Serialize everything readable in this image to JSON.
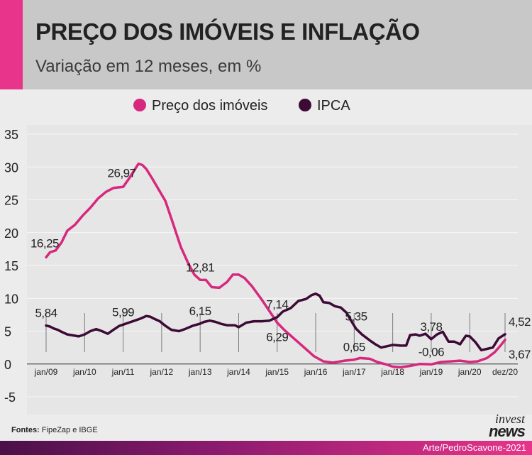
{
  "header": {
    "title": "PREÇO DOS IMÓVEIS E INFLAÇÃO",
    "subtitle": "Variação em 12 meses, em %"
  },
  "footer": {
    "sources_label": "Fontes:",
    "sources_text": " FipeZap e IBGE",
    "credit": "Arte/PedroScavone-2021",
    "logo_top": "invest",
    "logo_bottom": "news"
  },
  "colors": {
    "imoveis": "#d6287e",
    "ipca": "#3d0a35",
    "accent": "#e8348a"
  },
  "chart_data": {
    "type": "line",
    "title": "PREÇO DOS IMÓVEIS E INFLAÇÃO",
    "subtitle": "Variação em 12 meses, em %",
    "ylim": [
      -5,
      35
    ],
    "yticks": [
      -5,
      0,
      5,
      10,
      15,
      20,
      25,
      30,
      35
    ],
    "xlim": [
      2009.0,
      2020.917
    ],
    "xticks": [
      {
        "x": 2009.0,
        "label": "jan/09"
      },
      {
        "x": 2010.0,
        "label": "jan/10"
      },
      {
        "x": 2011.0,
        "label": "jan/11"
      },
      {
        "x": 2012.0,
        "label": "jan/12"
      },
      {
        "x": 2013.0,
        "label": "jan/13"
      },
      {
        "x": 2014.0,
        "label": "jan/14"
      },
      {
        "x": 2015.0,
        "label": "jan/15"
      },
      {
        "x": 2016.0,
        "label": "jan/16"
      },
      {
        "x": 2017.0,
        "label": "jan/17"
      },
      {
        "x": 2018.0,
        "label": "jan/18"
      },
      {
        "x": 2019.0,
        "label": "jan/19"
      },
      {
        "x": 2020.0,
        "label": "jan/20"
      },
      {
        "x": 2020.917,
        "label": "dez/20"
      }
    ],
    "legend_position": "top-center",
    "series": [
      {
        "name": "Preço dos imóveis",
        "color": "#d6287e",
        "points": [
          [
            2009.0,
            16.25
          ],
          [
            2009.1,
            17.0
          ],
          [
            2009.25,
            17.3
          ],
          [
            2009.4,
            18.5
          ],
          [
            2009.55,
            20.3
          ],
          [
            2009.75,
            21.2
          ],
          [
            2009.95,
            22.6
          ],
          [
            2010.15,
            23.8
          ],
          [
            2010.35,
            25.2
          ],
          [
            2010.55,
            26.2
          ],
          [
            2010.75,
            26.8
          ],
          [
            2011.0,
            26.97
          ],
          [
            2011.15,
            28.2
          ],
          [
            2011.3,
            29.6
          ],
          [
            2011.4,
            30.5
          ],
          [
            2011.5,
            30.3
          ],
          [
            2011.6,
            29.7
          ],
          [
            2011.75,
            28.3
          ],
          [
            2011.9,
            26.8
          ],
          [
            2012.1,
            24.8
          ],
          [
            2012.3,
            21.3
          ],
          [
            2012.5,
            17.8
          ],
          [
            2012.7,
            15.2
          ],
          [
            2012.85,
            13.6
          ],
          [
            2013.0,
            12.81
          ],
          [
            2013.15,
            12.8
          ],
          [
            2013.3,
            11.7
          ],
          [
            2013.5,
            11.6
          ],
          [
            2013.7,
            12.5
          ],
          [
            2013.85,
            13.6
          ],
          [
            2014.0,
            13.6
          ],
          [
            2014.15,
            13.1
          ],
          [
            2014.35,
            11.8
          ],
          [
            2014.6,
            9.8
          ],
          [
            2014.85,
            7.6
          ],
          [
            2015.0,
            6.29
          ],
          [
            2015.2,
            5.1
          ],
          [
            2015.45,
            3.8
          ],
          [
            2015.7,
            2.5
          ],
          [
            2015.95,
            1.2
          ],
          [
            2016.2,
            0.4
          ],
          [
            2016.45,
            0.2
          ],
          [
            2016.75,
            0.5
          ],
          [
            2017.0,
            0.65
          ],
          [
            2017.15,
            0.9
          ],
          [
            2017.4,
            0.8
          ],
          [
            2017.6,
            0.3
          ],
          [
            2017.85,
            -0.1
          ],
          [
            2018.0,
            -0.4
          ],
          [
            2018.2,
            -0.5
          ],
          [
            2018.45,
            -0.3
          ],
          [
            2018.7,
            0.0
          ],
          [
            2019.0,
            -0.06
          ],
          [
            2019.25,
            0.3
          ],
          [
            2019.5,
            0.4
          ],
          [
            2019.75,
            0.5
          ],
          [
            2020.0,
            0.3
          ],
          [
            2020.2,
            0.4
          ],
          [
            2020.45,
            0.9
          ],
          [
            2020.65,
            1.8
          ],
          [
            2020.8,
            2.8
          ],
          [
            2020.917,
            3.67
          ]
        ]
      },
      {
        "name": "IPCA",
        "color": "#3d0a35",
        "points": [
          [
            2009.0,
            5.84
          ],
          [
            2009.1,
            5.7
          ],
          [
            2009.2,
            5.4
          ],
          [
            2009.3,
            5.2
          ],
          [
            2009.4,
            4.9
          ],
          [
            2009.55,
            4.5
          ],
          [
            2009.7,
            4.35
          ],
          [
            2009.85,
            4.2
          ],
          [
            2010.0,
            4.5
          ],
          [
            2010.15,
            5.0
          ],
          [
            2010.3,
            5.3
          ],
          [
            2010.45,
            5.0
          ],
          [
            2010.6,
            4.6
          ],
          [
            2010.75,
            5.2
          ],
          [
            2010.9,
            5.8
          ],
          [
            2011.0,
            5.99
          ],
          [
            2011.15,
            6.3
          ],
          [
            2011.3,
            6.6
          ],
          [
            2011.45,
            6.9
          ],
          [
            2011.6,
            7.3
          ],
          [
            2011.7,
            7.2
          ],
          [
            2011.8,
            6.9
          ],
          [
            2011.95,
            6.5
          ],
          [
            2012.1,
            5.8
          ],
          [
            2012.25,
            5.2
          ],
          [
            2012.45,
            5.0
          ],
          [
            2012.6,
            5.3
          ],
          [
            2012.8,
            5.8
          ],
          [
            2013.0,
            6.15
          ],
          [
            2013.1,
            6.4
          ],
          [
            2013.25,
            6.6
          ],
          [
            2013.4,
            6.4
          ],
          [
            2013.55,
            6.1
          ],
          [
            2013.7,
            5.9
          ],
          [
            2013.9,
            5.9
          ],
          [
            2014.0,
            5.6
          ],
          [
            2014.2,
            6.3
          ],
          [
            2014.4,
            6.5
          ],
          [
            2014.6,
            6.5
          ],
          [
            2014.8,
            6.6
          ],
          [
            2015.0,
            7.14
          ],
          [
            2015.15,
            8.0
          ],
          [
            2015.35,
            8.5
          ],
          [
            2015.55,
            9.6
          ],
          [
            2015.75,
            9.9
          ],
          [
            2015.9,
            10.5
          ],
          [
            2016.0,
            10.7
          ],
          [
            2016.1,
            10.4
          ],
          [
            2016.2,
            9.4
          ],
          [
            2016.35,
            9.3
          ],
          [
            2016.5,
            8.8
          ],
          [
            2016.65,
            8.6
          ],
          [
            2016.8,
            7.8
          ],
          [
            2016.95,
            6.3
          ],
          [
            2017.05,
            5.35
          ],
          [
            2017.2,
            4.5
          ],
          [
            2017.4,
            3.6
          ],
          [
            2017.55,
            3.0
          ],
          [
            2017.7,
            2.5
          ],
          [
            2017.85,
            2.7
          ],
          [
            2018.0,
            2.9
          ],
          [
            2018.2,
            2.8
          ],
          [
            2018.35,
            2.8
          ],
          [
            2018.45,
            4.4
          ],
          [
            2018.6,
            4.5
          ],
          [
            2018.7,
            4.3
          ],
          [
            2018.85,
            4.6
          ],
          [
            2019.0,
            3.78
          ],
          [
            2019.15,
            4.5
          ],
          [
            2019.3,
            4.9
          ],
          [
            2019.45,
            3.4
          ],
          [
            2019.6,
            3.4
          ],
          [
            2019.75,
            3.0
          ],
          [
            2019.9,
            4.3
          ],
          [
            2020.0,
            4.2
          ],
          [
            2020.15,
            3.3
          ],
          [
            2020.3,
            2.1
          ],
          [
            2020.45,
            2.3
          ],
          [
            2020.6,
            2.5
          ],
          [
            2020.75,
            3.9
          ],
          [
            2020.917,
            4.52
          ]
        ]
      }
    ],
    "annotations": [
      {
        "series": 0,
        "x": 2009.0,
        "y": 16.25,
        "label": "16,25",
        "pos": "left-above"
      },
      {
        "series": 0,
        "x": 2011.0,
        "y": 26.97,
        "label": "26,97",
        "pos": "left-above"
      },
      {
        "series": 0,
        "x": 2013.0,
        "y": 12.81,
        "label": "12,81",
        "pos": "above"
      },
      {
        "series": 0,
        "x": 2015.0,
        "y": 6.29,
        "label": "6,29",
        "pos": "below"
      },
      {
        "series": 0,
        "x": 2017.0,
        "y": 0.65,
        "label": "0,65",
        "pos": "above"
      },
      {
        "series": 0,
        "x": 2019.0,
        "y": -0.06,
        "label": "-0,06",
        "pos": "above"
      },
      {
        "series": 0,
        "x": 2020.917,
        "y": 3.67,
        "label": "3,67",
        "pos": "below"
      },
      {
        "series": 1,
        "x": 2009.0,
        "y": 5.84,
        "label": "5,84",
        "pos": "above"
      },
      {
        "series": 1,
        "x": 2011.0,
        "y": 5.99,
        "label": "5,99",
        "pos": "above"
      },
      {
        "series": 1,
        "x": 2013.0,
        "y": 6.15,
        "label": "6,15",
        "pos": "above"
      },
      {
        "series": 1,
        "x": 2015.0,
        "y": 7.14,
        "label": "7,14",
        "pos": "above"
      },
      {
        "series": 1,
        "x": 2017.05,
        "y": 5.35,
        "label": "5,35",
        "pos": "above"
      },
      {
        "series": 1,
        "x": 2019.0,
        "y": 3.78,
        "label": "3,78",
        "pos": "above"
      },
      {
        "series": 1,
        "x": 2020.917,
        "y": 4.52,
        "label": "4,52",
        "pos": "above"
      }
    ]
  }
}
